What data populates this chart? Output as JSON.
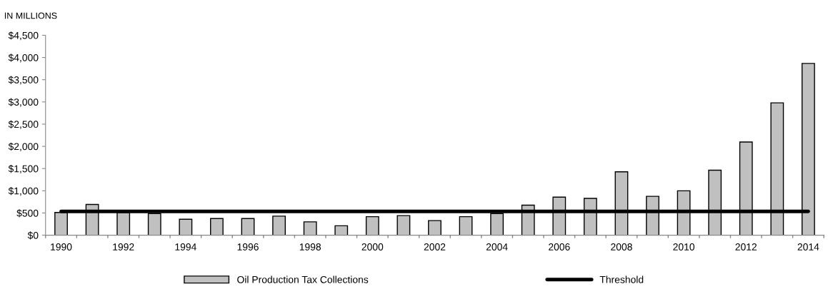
{
  "chart_data": {
    "type": "bar",
    "ylabel": "IN MILLIONS",
    "categories": [
      "1990",
      null,
      "1992",
      null,
      "1994",
      null,
      "1996",
      null,
      "1998",
      null,
      "2000",
      null,
      "2002",
      null,
      "2004",
      null,
      "2006",
      null,
      "2008",
      null,
      "2010",
      null,
      "2012",
      null,
      "2014"
    ],
    "series": [
      {
        "name": "Oil Production Tax Collections",
        "color": "#c0c0c0",
        "values": [
          511,
          693,
          511,
          488,
          358,
          376,
          376,
          429,
          300,
          212,
          417,
          441,
          329,
          417,
          488,
          676,
          858,
          828,
          1428,
          875,
          999,
          1463,
          2098,
          2979,
          3866
        ]
      },
      {
        "name": "Threshold",
        "type": "line",
        "color": "#000000",
        "values": [
          535,
          535,
          535,
          535,
          535,
          535,
          535,
          535,
          535,
          535,
          535,
          535,
          535,
          535,
          535,
          535,
          535,
          535,
          535,
          535,
          535,
          535,
          535,
          535,
          535
        ]
      }
    ],
    "ylim": [
      0,
      4500
    ],
    "yticks": [
      {
        "value": 0,
        "label": "$0"
      },
      {
        "value": 500,
        "label": "$500"
      },
      {
        "value": 1000,
        "label": "$1,000"
      },
      {
        "value": 1500,
        "label": "$1,500"
      },
      {
        "value": 2000,
        "label": "$2,000"
      },
      {
        "value": 2500,
        "label": "$2,500"
      },
      {
        "value": 3000,
        "label": "$3,000"
      },
      {
        "value": 3500,
        "label": "$3,500"
      },
      {
        "value": 4000,
        "label": "$4,000"
      },
      {
        "value": 4500,
        "label": "$4,500"
      }
    ],
    "grid": false,
    "legend": "bottom"
  }
}
